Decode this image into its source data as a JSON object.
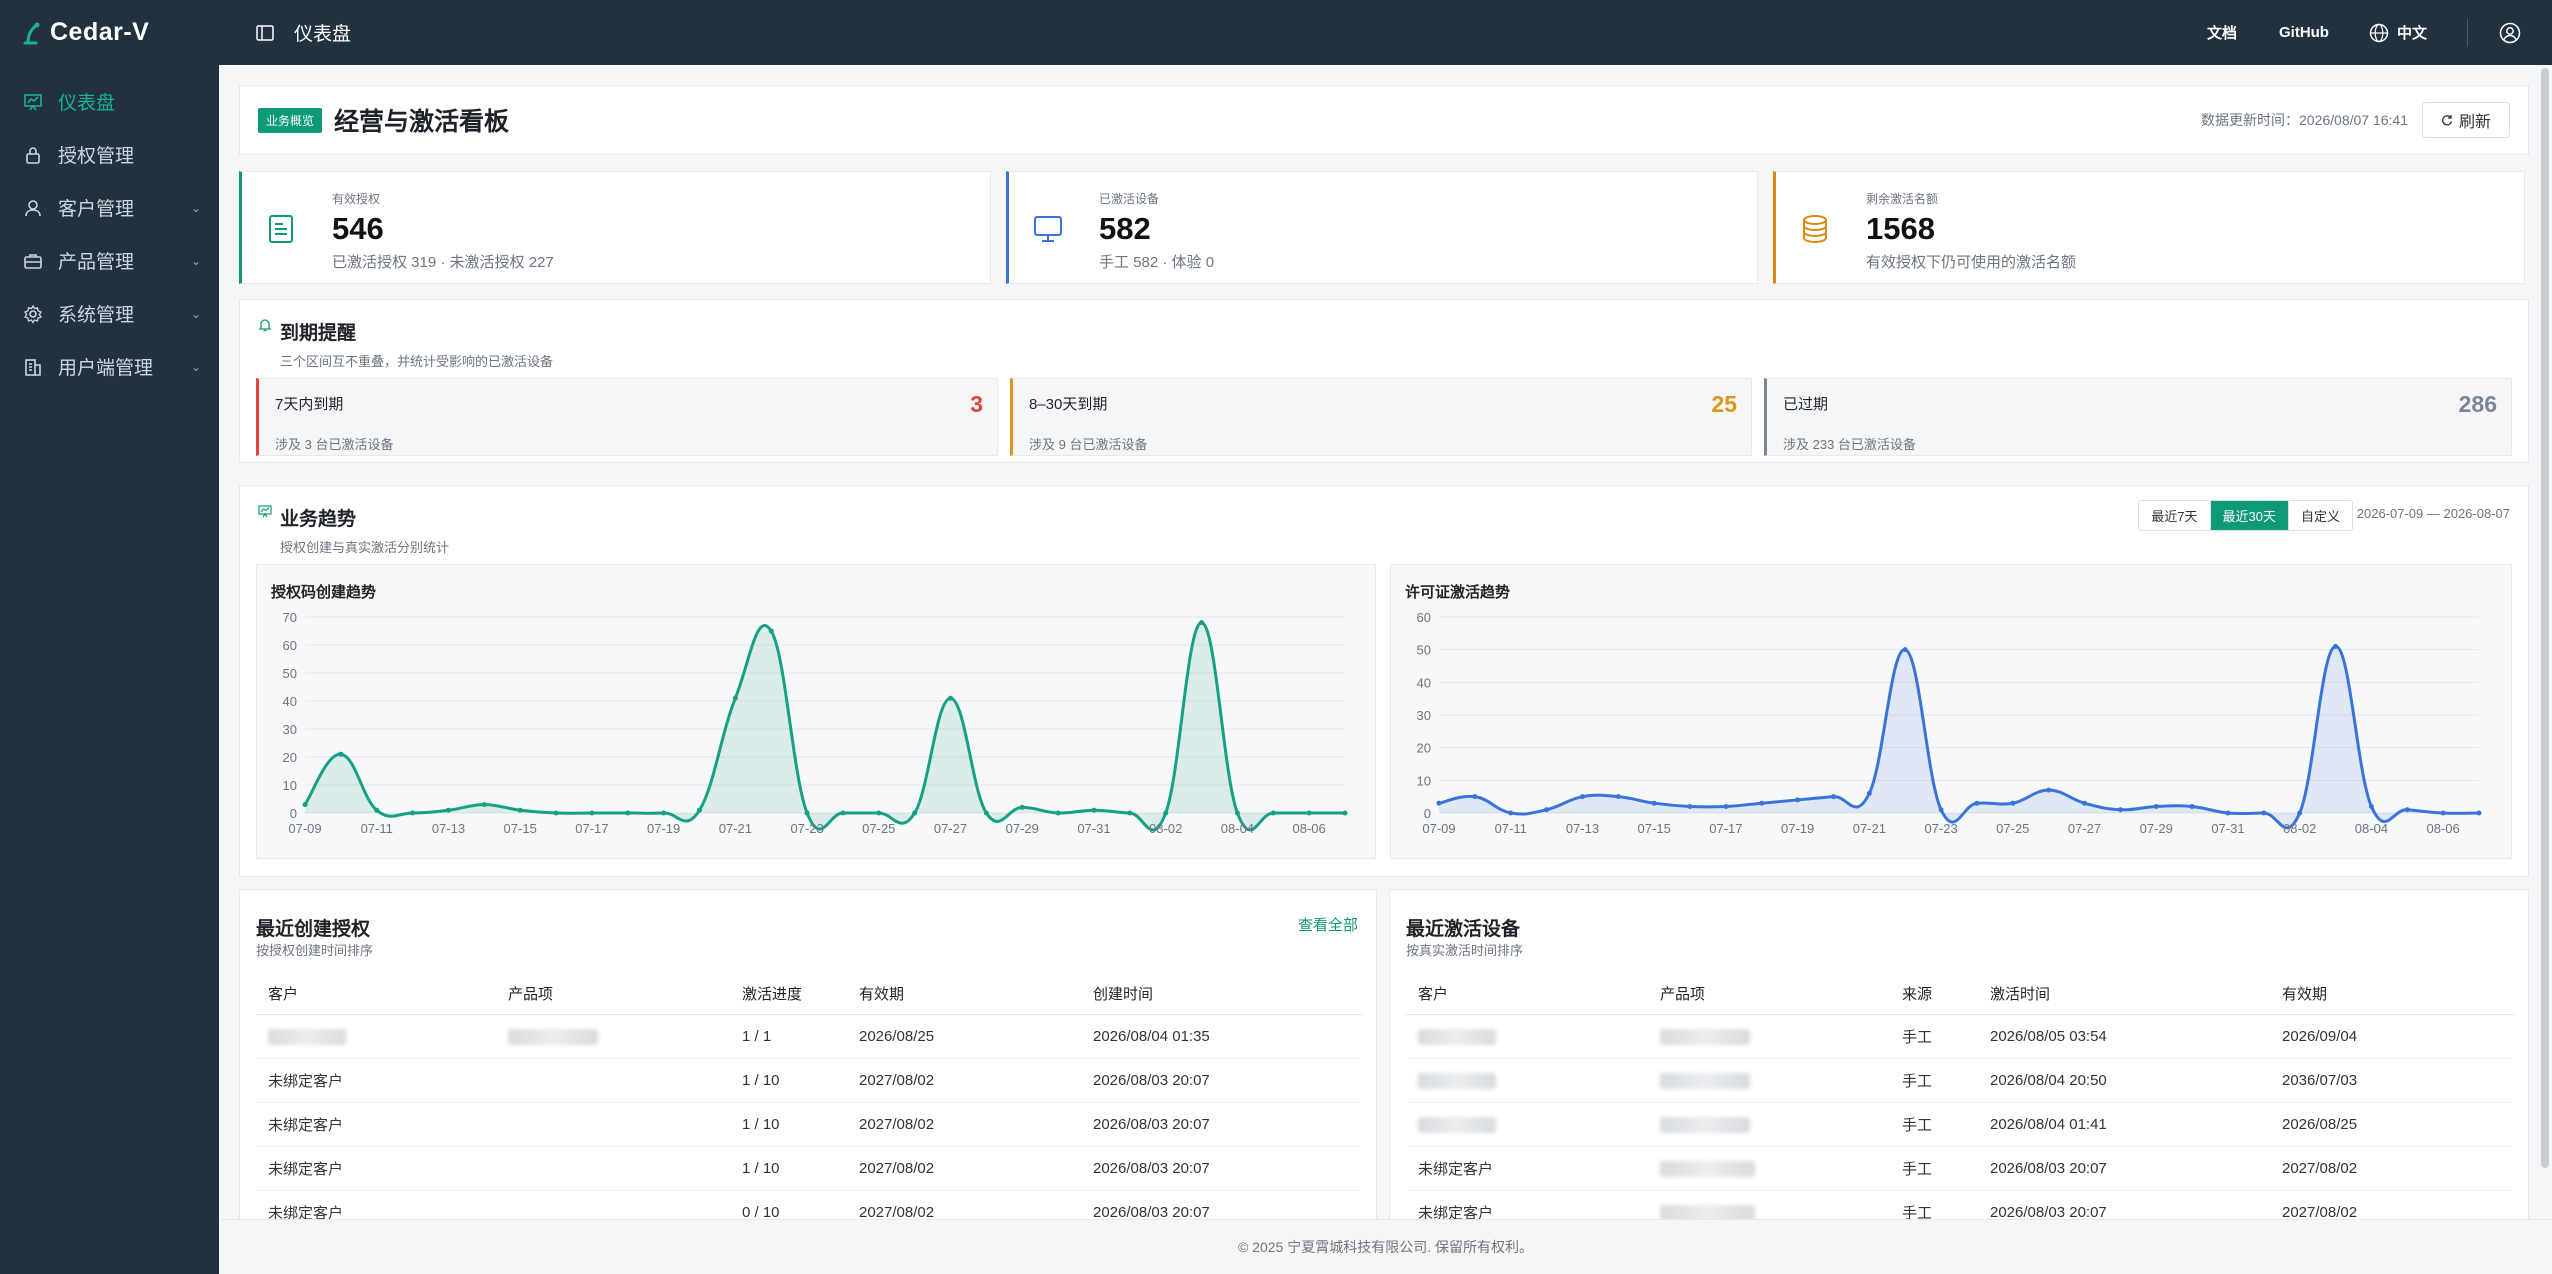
{
  "app": {
    "name": "Cedar-V"
  },
  "sidebar": {
    "items": [
      {
        "label": "仪表盘",
        "icon": "dashboard-icon",
        "active": true,
        "has_children": false
      },
      {
        "label": "授权管理",
        "icon": "lock-icon",
        "active": false,
        "has_children": false
      },
      {
        "label": "客户管理",
        "icon": "user-icon",
        "active": false,
        "has_children": true
      },
      {
        "label": "产品管理",
        "icon": "briefcase-icon",
        "active": false,
        "has_children": true
      },
      {
        "label": "系统管理",
        "icon": "gear-icon",
        "active": false,
        "has_children": true
      },
      {
        "label": "用户端管理",
        "icon": "building-icon",
        "active": false,
        "has_children": true
      }
    ]
  },
  "header": {
    "title": "仪表盘",
    "docs": "文档",
    "github": "GitHub",
    "lang": "中文"
  },
  "board": {
    "tag": "业务概览",
    "title": "经营与激活看板",
    "update_time": "数据更新时间：2026/08/07 16:41",
    "refresh": "刷新"
  },
  "stats": [
    {
      "label": "有效授权",
      "value": "546",
      "sub": "已激活授权 319 · 未激活授权 227",
      "color": "#0f9a76",
      "icon": "document-icon"
    },
    {
      "label": "已激活设备",
      "value": "582",
      "sub": "手工 582 · 体验 0",
      "color": "#3b74d9",
      "icon": "monitor-icon"
    },
    {
      "label": "剩余激活名额",
      "value": "1568",
      "sub": "有效授权下仍可使用的激活名额",
      "color": "#d88a10",
      "icon": "coins-icon"
    }
  ],
  "expiry": {
    "title": "到期提醒",
    "sub": "三个区间互不重叠，并统计受影响的已激活设备",
    "boxes": [
      {
        "label": "7天内到期",
        "count": "3",
        "sub": "涉及 3 台已激活设备",
        "color": "#e04545"
      },
      {
        "label": "8–30天到期",
        "count": "25",
        "sub": "涉及 9 台已激活设备",
        "color": "#e09418"
      },
      {
        "label": "已过期",
        "count": "286",
        "sub": "涉及 233 台已激活设备",
        "color": "#7a8696"
      }
    ]
  },
  "trend": {
    "title": "业务趋势",
    "sub": "授权创建与真实激活分别统计",
    "ranges": [
      "最近7天",
      "最近30天",
      "自定义"
    ],
    "active_range": 1,
    "range_text": "2026-07-09 — 2026-08-07"
  },
  "chart_data": [
    {
      "type": "area",
      "title": "授权码创建趋势",
      "color": "#16a085",
      "ylim": [
        0,
        70
      ],
      "yticks": [
        0,
        10,
        20,
        30,
        40,
        50,
        60,
        70
      ],
      "x_labels": [
        "07-09",
        "07-11",
        "07-13",
        "07-15",
        "07-17",
        "07-19",
        "07-21",
        "07-23",
        "07-25",
        "07-27",
        "07-29",
        "07-31",
        "08-02",
        "08-04",
        "08-06"
      ],
      "x": [
        "07-09",
        "07-10",
        "07-11",
        "07-12",
        "07-13",
        "07-14",
        "07-15",
        "07-16",
        "07-17",
        "07-18",
        "07-19",
        "07-20",
        "07-21",
        "07-22",
        "07-23",
        "07-24",
        "07-25",
        "07-26",
        "07-27",
        "07-28",
        "07-29",
        "07-30",
        "07-31",
        "08-01",
        "08-02",
        "08-03",
        "08-04",
        "08-05",
        "08-06",
        "08-07"
      ],
      "values": [
        3,
        21,
        1,
        0,
        1,
        3,
        1,
        0,
        0,
        0,
        0,
        1,
        41,
        65,
        0,
        0,
        0,
        0,
        41,
        0,
        2,
        0,
        1,
        0,
        0,
        68,
        0,
        0,
        0,
        0
      ]
    },
    {
      "type": "area",
      "title": "许可证激活趋势",
      "color": "#3b74d9",
      "ylim": [
        0,
        60
      ],
      "yticks": [
        0,
        10,
        20,
        30,
        40,
        50,
        60
      ],
      "x_labels": [
        "07-09",
        "07-11",
        "07-13",
        "07-15",
        "07-17",
        "07-19",
        "07-21",
        "07-23",
        "07-25",
        "07-27",
        "07-29",
        "07-31",
        "08-02",
        "08-04",
        "08-06"
      ],
      "x": [
        "07-09",
        "07-10",
        "07-11",
        "07-12",
        "07-13",
        "07-14",
        "07-15",
        "07-16",
        "07-17",
        "07-18",
        "07-19",
        "07-20",
        "07-21",
        "07-22",
        "07-23",
        "07-24",
        "07-25",
        "07-26",
        "07-27",
        "07-28",
        "07-29",
        "07-30",
        "07-31",
        "08-01",
        "08-02",
        "08-03",
        "08-04",
        "08-05",
        "08-06",
        "08-07"
      ],
      "values": [
        3,
        5,
        0,
        1,
        5,
        5,
        3,
        2,
        2,
        3,
        4,
        5,
        6,
        50,
        1,
        3,
        3,
        7,
        3,
        1,
        2,
        2,
        0,
        0,
        0,
        51,
        2,
        1,
        0,
        0
      ]
    }
  ],
  "recent_licenses": {
    "title": "最近创建授权",
    "sub": "按授权创建时间排序",
    "link": "查看全部",
    "columns": [
      "客户",
      "产品项",
      "激活进度",
      "有效期",
      "创建时间"
    ],
    "rows": [
      {
        "customer": "",
        "product": "",
        "progress": "1 / 1",
        "expiry": "2026/08/25",
        "created": "2026/08/04 01:35",
        "masked": true
      },
      {
        "customer": "未绑定客户",
        "product": "",
        "progress": "1 / 10",
        "expiry": "2027/08/02",
        "created": "2026/08/03 20:07",
        "masked": false
      },
      {
        "customer": "未绑定客户",
        "product": "",
        "progress": "1 / 10",
        "expiry": "2027/08/02",
        "created": "2026/08/03 20:07",
        "masked": false
      },
      {
        "customer": "未绑定客户",
        "product": "",
        "progress": "1 / 10",
        "expiry": "2027/08/02",
        "created": "2026/08/03 20:07",
        "masked": false
      },
      {
        "customer": "未绑定客户",
        "product": "",
        "progress": "0 / 10",
        "expiry": "2027/08/02",
        "created": "2026/08/03 20:07",
        "masked": false
      }
    ]
  },
  "recent_devices": {
    "title": "最近激活设备",
    "sub": "按真实激活时间排序",
    "columns": [
      "客户",
      "产品项",
      "来源",
      "激活时间",
      "有效期"
    ],
    "rows": [
      {
        "customer": "",
        "product": "",
        "source": "手工",
        "activated": "2026/08/05 03:54",
        "expiry": "2026/09/04",
        "masked": true
      },
      {
        "customer": "",
        "product": "",
        "source": "手工",
        "activated": "2026/08/04 20:50",
        "expiry": "2036/07/03",
        "masked": true
      },
      {
        "customer": "",
        "product": "",
        "source": "手工",
        "activated": "2026/08/04 01:41",
        "expiry": "2026/08/25",
        "masked": true
      },
      {
        "customer": "未绑定客户",
        "product": "",
        "source": "手工",
        "activated": "2026/08/03 20:07",
        "expiry": "2027/08/02",
        "masked": false
      },
      {
        "customer": "未绑定客户",
        "product": "",
        "source": "手工",
        "activated": "2026/08/03 20:07",
        "expiry": "2027/08/02",
        "masked": false
      }
    ]
  },
  "footer": {
    "text": "© 2025 宁夏霄城科技有限公司. 保留所有权利。"
  }
}
